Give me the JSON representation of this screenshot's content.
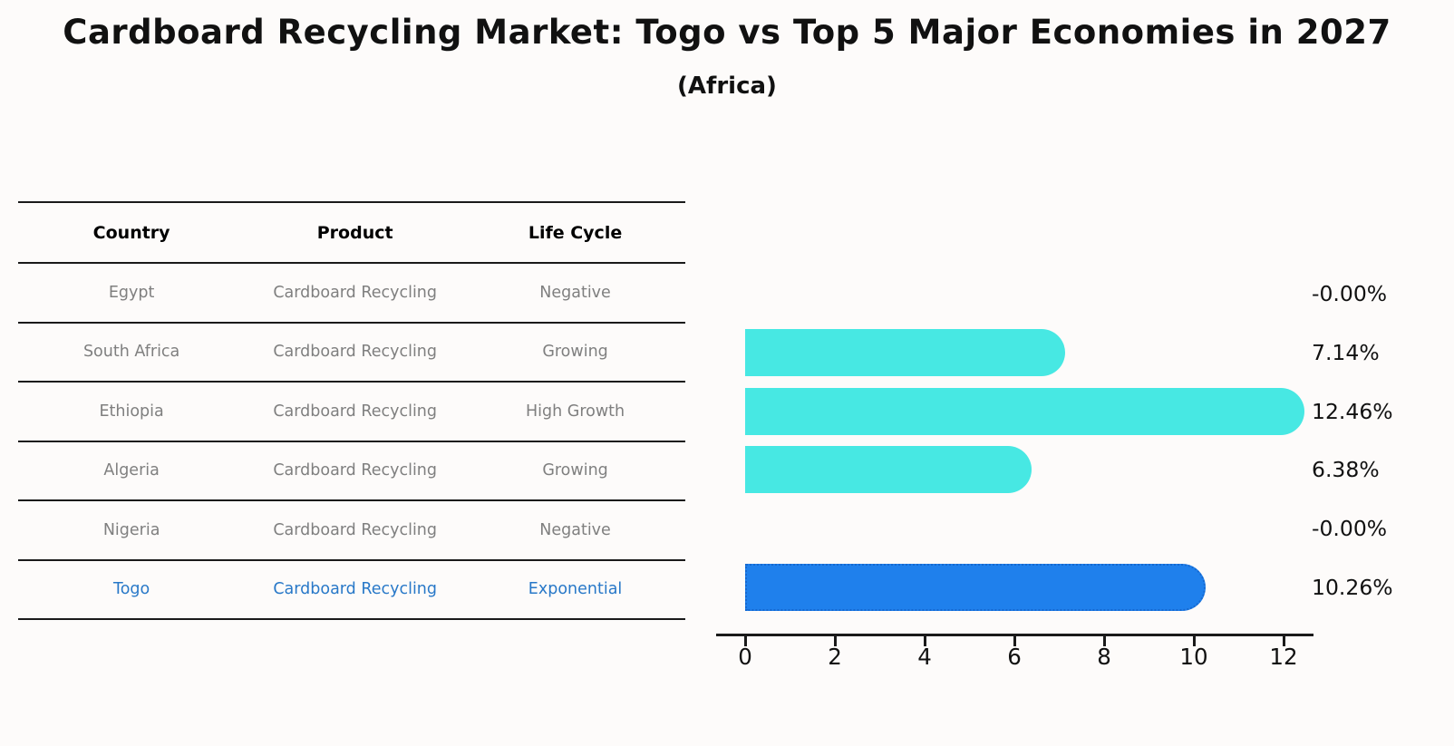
{
  "title": "Cardboard Recycling Market: Togo vs Top 5 Major Economies in 2027",
  "subtitle": "(Africa)",
  "table": {
    "headers": [
      "Country",
      "Product",
      "Life Cycle"
    ],
    "rows": [
      {
        "country": "Egypt",
        "product": "Cardboard Recycling",
        "life_cycle": "Negative",
        "highlight": false
      },
      {
        "country": "South Africa",
        "product": "Cardboard Recycling",
        "life_cycle": "Growing",
        "highlight": false
      },
      {
        "country": "Ethiopia",
        "product": "Cardboard Recycling",
        "life_cycle": "High Growth",
        "highlight": false
      },
      {
        "country": "Algeria",
        "product": "Cardboard Recycling",
        "life_cycle": "Growing",
        "highlight": false
      },
      {
        "country": "Nigeria",
        "product": "Cardboard Recycling",
        "life_cycle": "Negative",
        "highlight": false
      },
      {
        "country": "Togo",
        "product": "Cardboard Recycling",
        "life_cycle": "Exponential",
        "highlight": true
      }
    ]
  },
  "chart_data": {
    "type": "bar",
    "orientation": "horizontal",
    "title": "Cardboard Recycling Market: Togo vs Top 5 Major Economies in 2027 (Africa)",
    "categories": [
      "Egypt",
      "South Africa",
      "Ethiopia",
      "Algeria",
      "Nigeria",
      "Togo"
    ],
    "values": [
      -0.0,
      7.14,
      12.46,
      6.38,
      -0.0,
      10.26
    ],
    "value_labels": [
      "-0.00%",
      "7.14%",
      "12.46%",
      "6.38%",
      "-0.00%",
      "10.26%"
    ],
    "xlabel": "",
    "ylabel": "",
    "xticks": [
      0,
      2,
      4,
      6,
      8,
      10,
      12
    ],
    "xlim": [
      0,
      13.2
    ],
    "grid": false,
    "legend": false,
    "bar_color": "#47e8e3",
    "highlight_bar_color": "#1f80ec",
    "highlight_border_color": "#1668cf",
    "highlight_index": 5
  },
  "colors": {
    "background": "#fdfbfa",
    "title_text": "#111111",
    "table_line": "#1a1a1a",
    "table_header_text": "#000000",
    "table_row_text": "#7f7f7f",
    "highlight_text": "#2878c8",
    "axis_text": "#111111"
  }
}
